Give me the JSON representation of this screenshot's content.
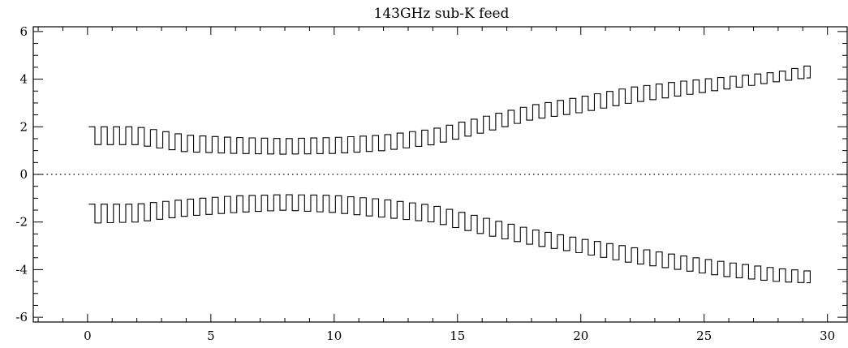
{
  "chart_data": {
    "type": "line",
    "title": "143GHz sub-K feed",
    "xlabel": "",
    "ylabel": "",
    "xlim": [
      -2.2,
      30.8
    ],
    "ylim": [
      -6.2,
      6.2
    ],
    "x_ticks": [
      0,
      5,
      10,
      15,
      20,
      25,
      30
    ],
    "y_ticks": [
      -6,
      -4,
      -2,
      0,
      2,
      4,
      6
    ],
    "y_minor_step": 0.5,
    "x_minor_step": 1,
    "grid": false,
    "zero_line": {
      "y": 0,
      "style": "dotted"
    },
    "square_wave": {
      "period": 0.5,
      "x_start": 0.05,
      "x_end": 29.15
    },
    "series": [
      {
        "x": [
          0,
          2,
          4,
          6,
          8,
          10,
          12,
          14,
          16,
          18,
          20,
          22,
          24,
          26,
          28,
          29.15
        ],
        "high": [
          2.0,
          2.0,
          1.65,
          1.55,
          1.5,
          1.55,
          1.65,
          1.9,
          2.4,
          2.9,
          3.25,
          3.65,
          3.9,
          4.1,
          4.3,
          4.55
        ],
        "low": [
          1.25,
          1.25,
          0.95,
          0.88,
          0.85,
          0.88,
          1.0,
          1.25,
          1.75,
          2.3,
          2.6,
          3.0,
          3.3,
          3.6,
          3.9,
          4.05
        ],
        "color": "#000000"
      },
      {
        "x": [
          0,
          2,
          4,
          6,
          8,
          10,
          12,
          14,
          16,
          18,
          20,
          22,
          24,
          26,
          28,
          29.15
        ],
        "high": [
          -1.25,
          -1.25,
          -1.05,
          -0.9,
          -0.85,
          -0.88,
          -1.05,
          -1.3,
          -1.8,
          -2.3,
          -2.7,
          -3.05,
          -3.4,
          -3.7,
          -3.95,
          -4.05
        ],
        "low": [
          -2.05,
          -2.0,
          -1.75,
          -1.6,
          -1.5,
          -1.6,
          -1.8,
          -2.0,
          -2.5,
          -2.95,
          -3.3,
          -3.7,
          -4.0,
          -4.3,
          -4.5,
          -4.55
        ],
        "color": "#000000"
      }
    ]
  }
}
